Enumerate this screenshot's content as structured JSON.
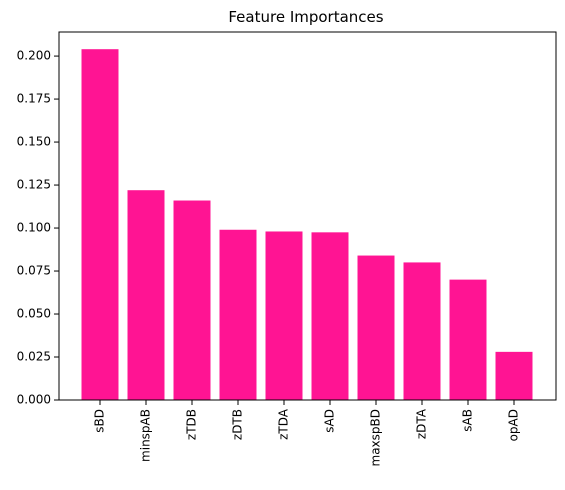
{
  "chart_data": {
    "type": "bar",
    "title": "Feature Importances",
    "xlabel": "",
    "ylabel": "",
    "categories": [
      "sBD",
      "minspAB",
      "zTDB",
      "zDTB",
      "zTDA",
      "sAD",
      "maxspBD",
      "zDTA",
      "sAB",
      "opAD"
    ],
    "values": [
      0.204,
      0.122,
      0.116,
      0.099,
      0.098,
      0.0975,
      0.084,
      0.08,
      0.07,
      0.028
    ],
    "ylim": [
      0,
      0.214
    ],
    "yticks": [
      "0.000",
      "0.025",
      "0.050",
      "0.075",
      "0.100",
      "0.125",
      "0.150",
      "0.175",
      "0.200"
    ],
    "bar_color": "#ff1493",
    "grid": false,
    "legend": "none"
  }
}
